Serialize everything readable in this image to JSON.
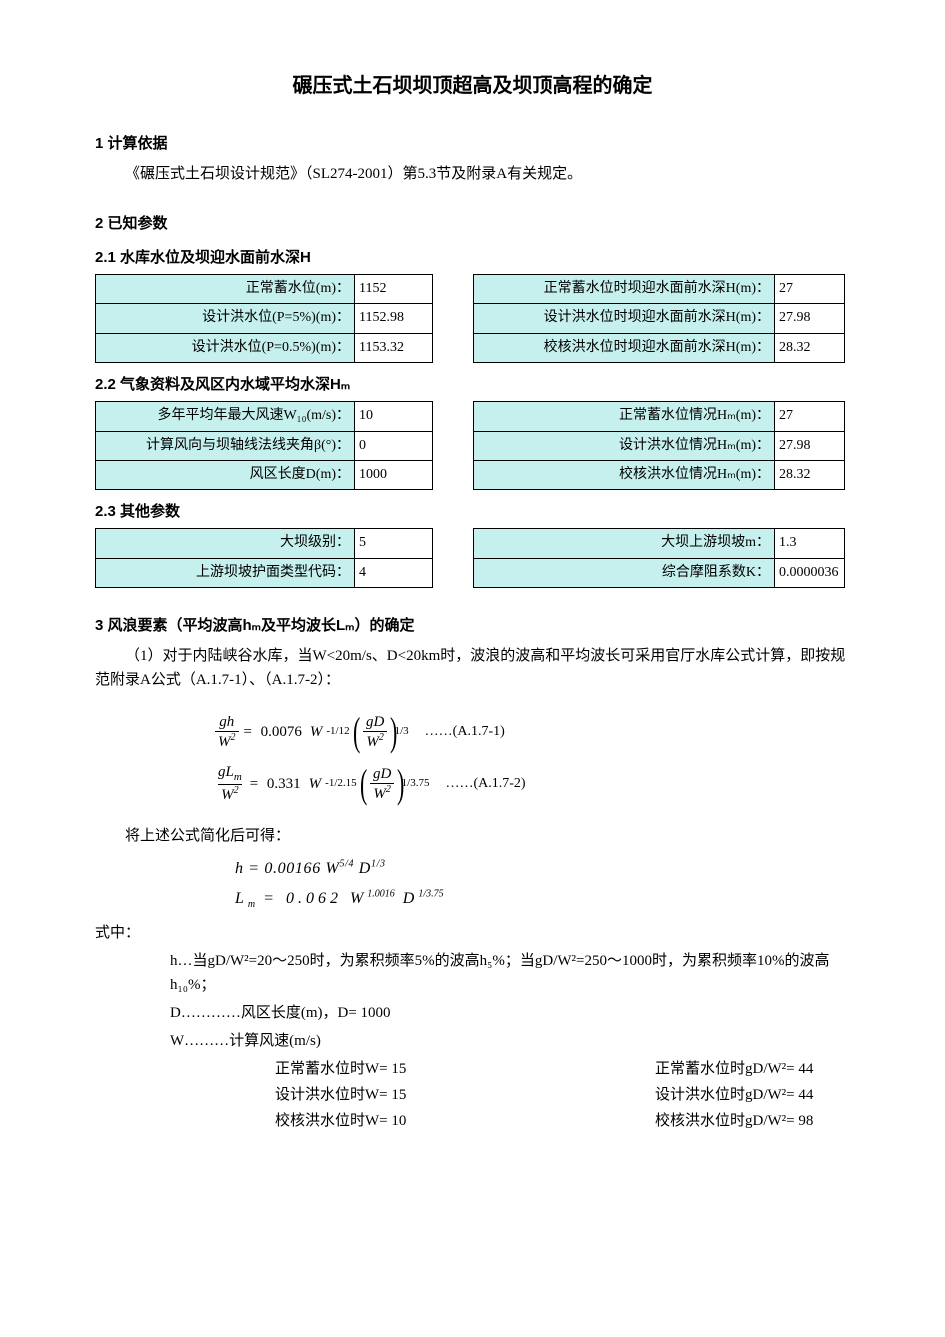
{
  "title": "碾压式土石坝坝顶超高及坝顶高程的确定",
  "section1": {
    "heading": "1 计算依据",
    "text": "《碾压式土石坝设计规范》（SL274-2001）第5.3节及附录A有关规定。"
  },
  "section2": {
    "heading": "2 已知参数",
    "s21": {
      "heading": "2.1 水库水位及坝迎水面前水深H",
      "rows": [
        {
          "l1": "正常蓄水位(m)：",
          "v1": "1152",
          "l2": "正常蓄水位时坝迎水面前水深H(m)：",
          "v2": "27"
        },
        {
          "l1": "设计洪水位(P=5%)(m)：",
          "v1": "1152.98",
          "l2": "设计洪水位时坝迎水面前水深H(m)：",
          "v2": "27.98"
        },
        {
          "l1": "设计洪水位(P=0.5%)(m)：",
          "v1": "1153.32",
          "l2": "校核洪水位时坝迎水面前水深H(m)：",
          "v2": "28.32"
        }
      ]
    },
    "s22": {
      "heading": "2.2 气象资料及风区内水域平均水深Hₘ",
      "rows": [
        {
          "l1": "多年平均年最大风速W₁₀(m/s)：",
          "v1": "10",
          "l2": "正常蓄水位情况Hₘ(m)：",
          "v2": "27"
        },
        {
          "l1": "计算风向与坝轴线法线夹角β(°)：",
          "v1": "0",
          "l2": "设计洪水位情况Hₘ(m)：",
          "v2": "27.98"
        },
        {
          "l1": "风区长度D(m)：",
          "v1": "1000",
          "l2": "校核洪水位情况Hₘ(m)：",
          "v2": "28.32"
        }
      ]
    },
    "s23": {
      "heading": "2.3 其他参数",
      "rows": [
        {
          "l1": "大坝级别：",
          "v1": "5",
          "l2": "大坝上游坝坡m：",
          "v2": "1.3"
        },
        {
          "l1": "上游坝坡护面类型代码：",
          "v1": "4",
          "l2": "综合摩阻系数K：",
          "v2": "0.0000036"
        }
      ]
    }
  },
  "section3": {
    "heading": "3 风浪要素（平均波高hₘ及平均波长Lₘ）的确定",
    "para1": "（1）对于内陆峡谷水库，当W<20m/s、D<20km时，波浪的波高和平均波长可采用官厅水库公式计算，即按规范附录A公式（A.1.7-1）、（A.1.7-2）：",
    "eq1_label": "……(A.1.7-1)",
    "eq2_label": "……(A.1.7-2)",
    "simplified_intro": "将上述公式简化后可得：",
    "simp_h": "h = 0.00166 W",
    "simp_h_sup": "5/4",
    "simp_h_D": "D",
    "simp_h_Dsup": "1/3",
    "simp_L": "L",
    "simp_L_sub": "m",
    "simp_L_eq": " = 0.062 W",
    "simp_L_sup": "1.0016",
    "simp_L_D": " D",
    "simp_L_Dsup": "1/3.75",
    "where": "式中：",
    "where_h": "h…当gD/W²=20～250时，为累积频率5%的波高h₅%；当gD/W²=250～1000时，为累积频率10%的波高h₁₀%；",
    "where_D": "D…………风区长度(m)，D= 1000",
    "where_W": "W………计算风速(m/s)",
    "wlines": [
      {
        "left": "正常蓄水位时W= 15",
        "right": "正常蓄水位时gD/W²= 44"
      },
      {
        "left": "设计洪水位时W= 15",
        "right": "设计洪水位时gD/W²= 44"
      },
      {
        "left": "校核洪水位时W= 10",
        "right": "校核洪水位时gD/W²= 98"
      }
    ]
  },
  "layout": {
    "table21": {
      "l1w": 260,
      "v1w": 78,
      "l2w": 302,
      "v2w": 70
    },
    "table22": {
      "l1w": 260,
      "v1w": 78,
      "l2w": 302,
      "v2w": 70
    },
    "table23": {
      "l1w": 260,
      "v1w": 78,
      "l2w": 302,
      "v2w": 70
    },
    "colors": {
      "header_bg": "#c5f0ed",
      "border": "#000000",
      "page_bg": "#ffffff",
      "text": "#000000"
    },
    "font_size_body": 15,
    "font_size_title": 20
  }
}
